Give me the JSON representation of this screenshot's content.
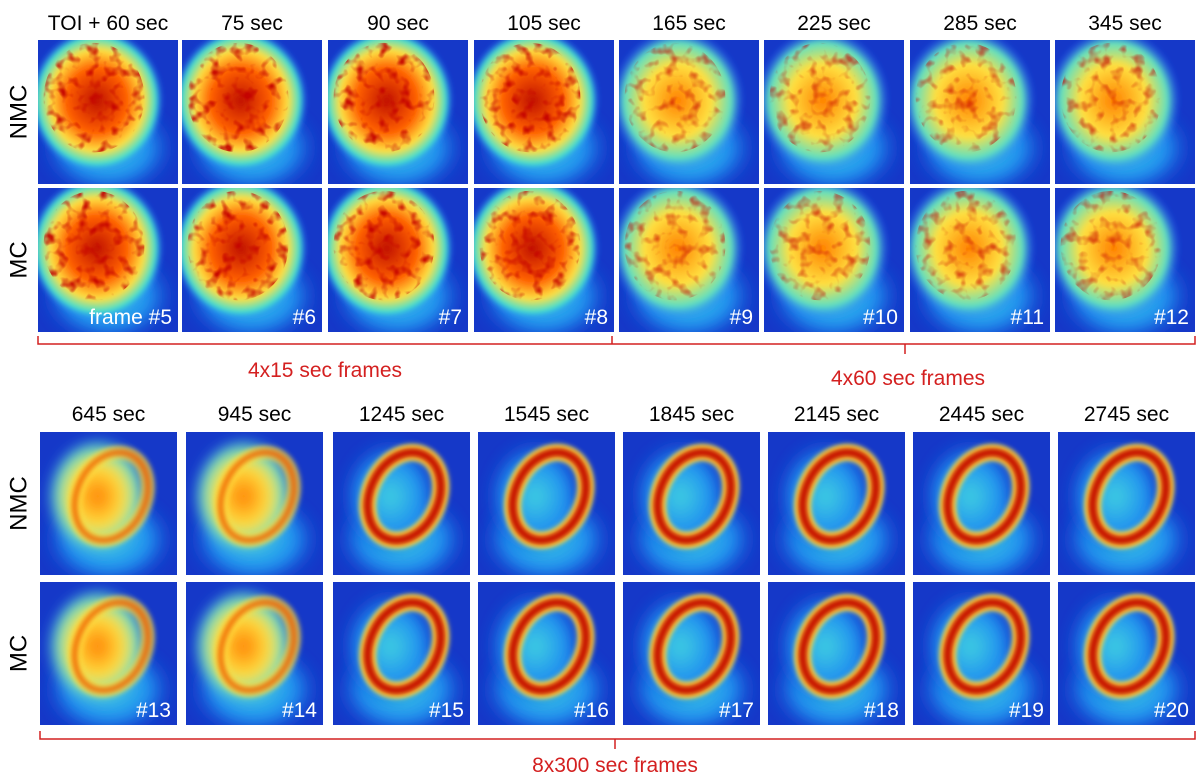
{
  "top": {
    "columns": [
      "TOI + 60 sec",
      "75 sec",
      "90 sec",
      "105 sec",
      "165 sec",
      "225 sec",
      "285 sec",
      "345 sec"
    ],
    "rows": [
      "NMC",
      "MC"
    ],
    "frames": [
      "frame #5",
      "#6",
      "#7",
      "#8",
      "#9",
      "#10",
      "#11",
      "#12"
    ],
    "brackets": [
      "4x15 sec frames",
      "4x60 sec frames"
    ]
  },
  "bottom": {
    "columns": [
      "645 sec",
      "945 sec",
      "1245 sec",
      "1545 sec",
      "1845 sec",
      "2145 sec",
      "2445 sec",
      "2745 sec"
    ],
    "rows": [
      "NMC",
      "MC"
    ],
    "frames": [
      "#13",
      "#14",
      "#15",
      "#16",
      "#17",
      "#18",
      "#19",
      "#20"
    ],
    "brackets": [
      "8x300 sec frames"
    ]
  }
}
